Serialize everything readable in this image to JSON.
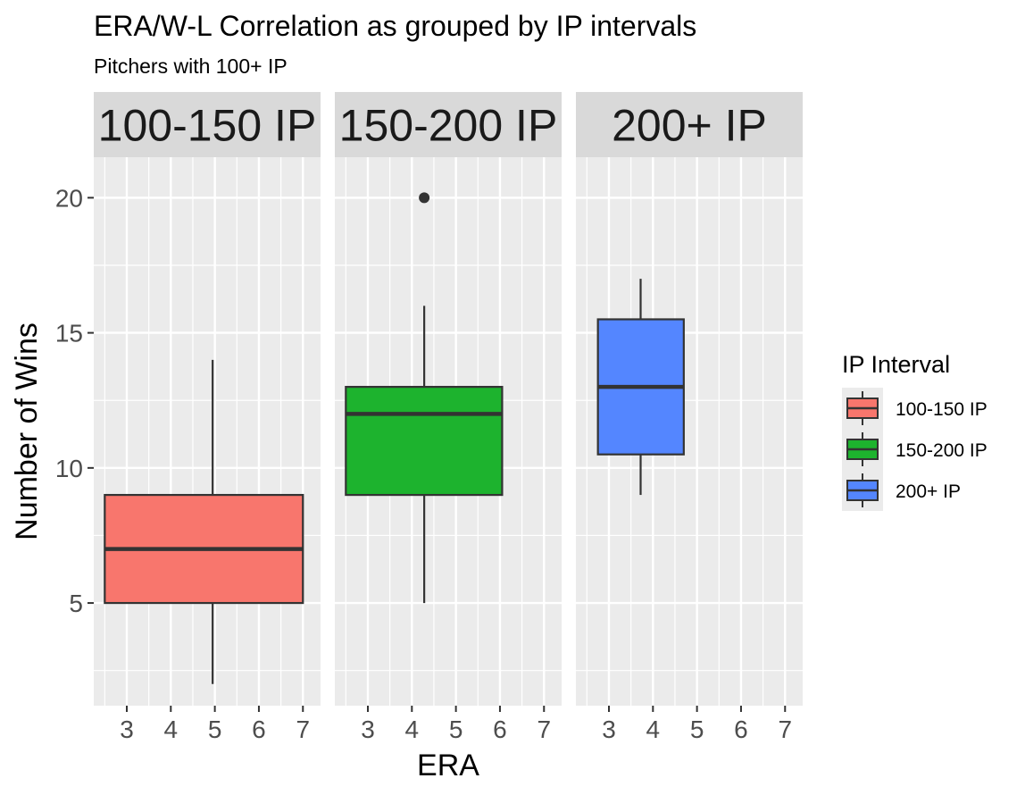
{
  "chart_data": {
    "type": "boxplot",
    "title": "ERA/W-L Correlation as grouped by IP intervals",
    "subtitle": "Pitchers with 100+ IP",
    "xlabel": "ERA",
    "ylabel": "Number of Wins",
    "xlim": [
      2.25,
      7.4
    ],
    "ylim": [
      1.2,
      21.5
    ],
    "x_ticks": [
      3,
      4,
      5,
      6,
      7
    ],
    "y_ticks": [
      5,
      10,
      15,
      20
    ],
    "grid": "on",
    "legend": {
      "title": "IP Interval",
      "placement": "right",
      "entries": [
        "100-150 IP",
        "150-200 IP",
        "200+ IP"
      ]
    },
    "facets": [
      {
        "label": "100-150 IP",
        "color": "#F8766D",
        "box": {
          "x_min": 2.5,
          "x_max": 7.0,
          "whisker_x": 4.95,
          "min": 2,
          "q1": 5,
          "median": 7,
          "q3": 9,
          "max": 14
        },
        "outliers": []
      },
      {
        "label": "150-200 IP",
        "color": "#1DB32E",
        "box": {
          "x_min": 2.5,
          "x_max": 6.05,
          "whisker_x": 4.28,
          "min": 5,
          "q1": 9,
          "median": 12,
          "q3": 13,
          "max": 16
        },
        "outliers": [
          {
            "x": 4.28,
            "y": 20
          }
        ]
      },
      {
        "label": "200+ IP",
        "color": "#5486FF",
        "box": {
          "x_min": 2.75,
          "x_max": 4.7,
          "whisker_x": 3.72,
          "min": 9,
          "q1": 10.5,
          "median": 13,
          "q3": 15.5,
          "max": 17
        },
        "outliers": []
      }
    ]
  }
}
